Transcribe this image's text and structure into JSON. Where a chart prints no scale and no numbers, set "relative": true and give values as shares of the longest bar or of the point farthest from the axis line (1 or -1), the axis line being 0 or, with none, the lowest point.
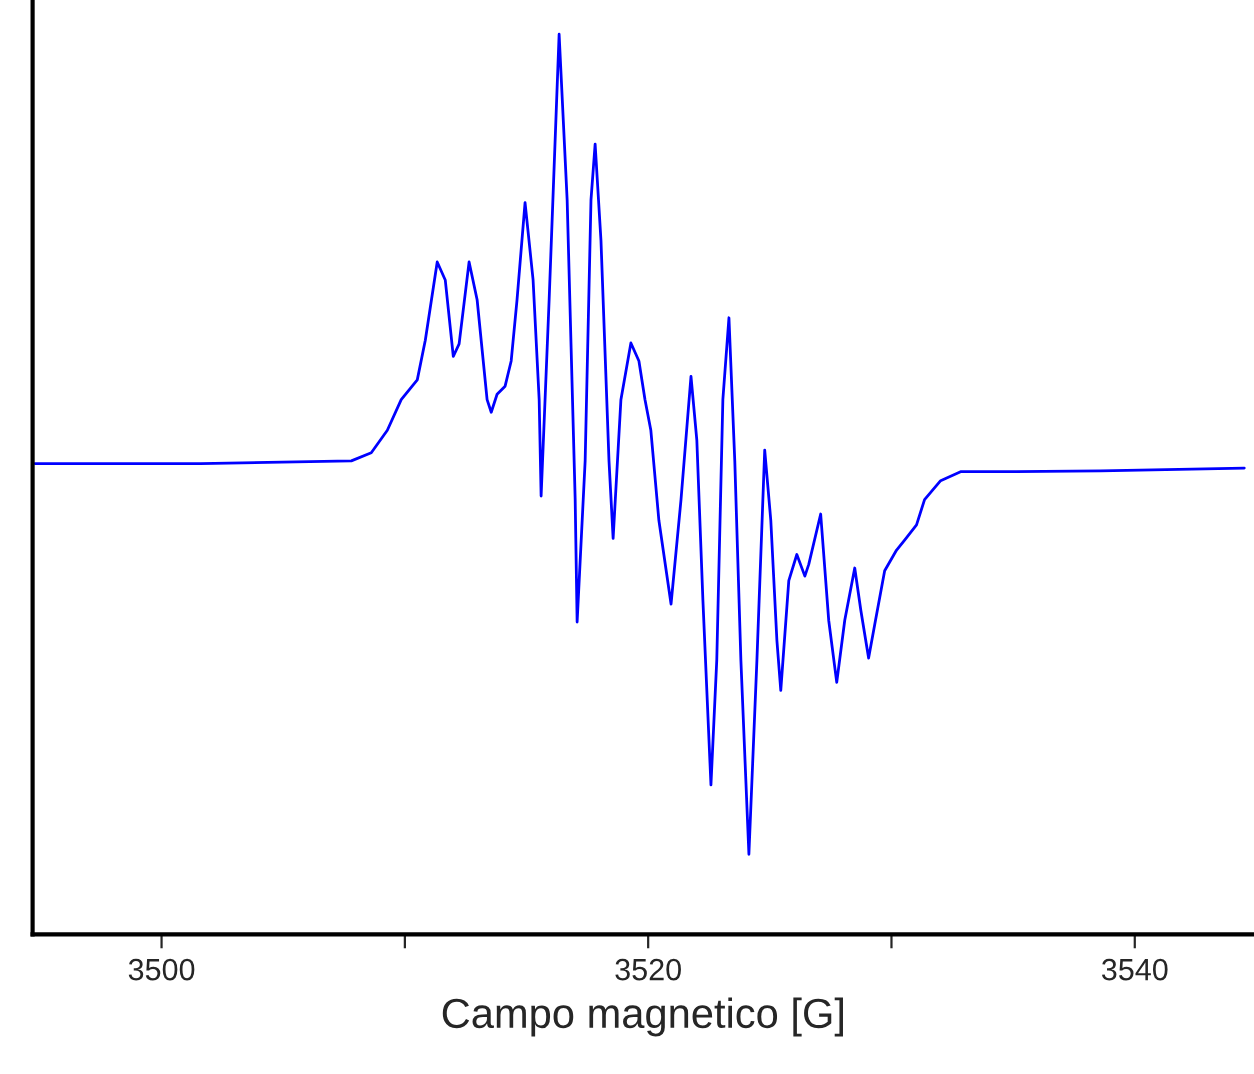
{
  "chart_data": {
    "type": "line",
    "xlabel": "Campo magnetico [G]",
    "relative": true,
    "xlim": [
      3494.7,
      3544.9
    ],
    "xticks": [
      3500,
      {
        "value": 3510,
        "label": null
      },
      3520,
      {
        "value": 3530,
        "label": null
      },
      3540
    ],
    "grid": false,
    "legend": false,
    "marker": "none",
    "line_style": "solid",
    "series": [
      {
        "color": "#0000ff",
        "x": [
          3494.8,
          3501.6,
          3507.8,
          3508.62,
          3509.28,
          3509.85,
          3510.51,
          3510.84,
          3511.33,
          3511.66,
          3511.99,
          3512.23,
          3512.64,
          3512.97,
          3513.38,
          3513.55,
          3513.79,
          3514.12,
          3514.37,
          3514.61,
          3514.94,
          3515.27,
          3515.52,
          3515.6,
          3515.93,
          3516.34,
          3516.67,
          3517.0,
          3517.08,
          3517.41,
          3517.65,
          3517.82,
          3518.06,
          3518.39,
          3518.56,
          3518.88,
          3519.29,
          3519.62,
          3519.87,
          3520.11,
          3520.44,
          3520.94,
          3521.35,
          3521.76,
          3522.0,
          3522.25,
          3522.58,
          3522.82,
          3523.07,
          3523.32,
          3523.56,
          3523.81,
          3524.14,
          3524.47,
          3524.79,
          3525.04,
          3525.29,
          3525.45,
          3525.78,
          3526.11,
          3526.44,
          3526.6,
          3527.09,
          3527.42,
          3527.75,
          3528.08,
          3528.49,
          3528.74,
          3529.06,
          3529.31,
          3529.72,
          3530.21,
          3530.54,
          3531.03,
          3531.36,
          3532.02,
          3532.84,
          3534.48,
          3538.59,
          3544.5
        ],
        "values": [
          0.523,
          0.523,
          0.526,
          0.535,
          0.56,
          0.594,
          0.616,
          0.66,
          0.747,
          0.727,
          0.642,
          0.656,
          0.747,
          0.705,
          0.594,
          0.58,
          0.6,
          0.609,
          0.637,
          0.705,
          0.813,
          0.727,
          0.594,
          0.487,
          0.705,
          1.0,
          0.816,
          0.483,
          0.347,
          0.526,
          0.816,
          0.878,
          0.771,
          0.526,
          0.44,
          0.594,
          0.657,
          0.637,
          0.594,
          0.56,
          0.46,
          0.367,
          0.483,
          0.62,
          0.549,
          0.371,
          0.166,
          0.305,
          0.594,
          0.685,
          0.526,
          0.305,
          0.089,
          0.305,
          0.538,
          0.46,
          0.327,
          0.271,
          0.393,
          0.422,
          0.398,
          0.411,
          0.467,
          0.349,
          0.28,
          0.349,
          0.407,
          0.36,
          0.307,
          0.344,
          0.404,
          0.427,
          0.438,
          0.455,
          0.483,
          0.504,
          0.514,
          0.514,
          0.515,
          0.518
        ]
      }
    ]
  }
}
